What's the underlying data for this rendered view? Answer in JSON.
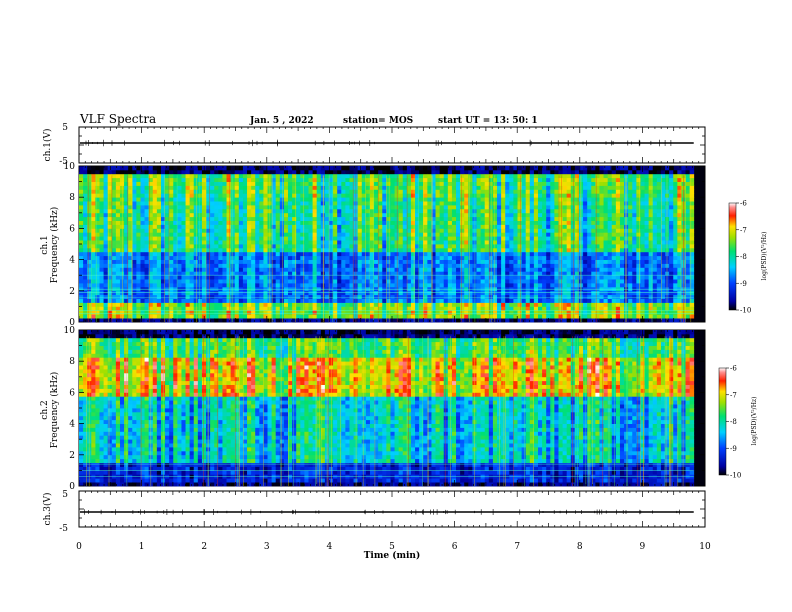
{
  "header": {
    "title": "VLF Spectra",
    "date": "Jan. 5 , 2022",
    "station": "station= MOS",
    "start_ut": "start UT = 13: 50: 1"
  },
  "colorbar": {
    "label": "log(PSD)(V²/Hz)",
    "ticks": [
      "-6",
      "-7",
      "-8",
      "-9",
      "-10"
    ],
    "range": [
      -10,
      -6
    ]
  },
  "chart_data": [
    {
      "type": "heatmap",
      "channel": "ch.1",
      "ylabel": "Frequency (kHz)",
      "xlabel": "Time (min)",
      "xlim": [
        0,
        10
      ],
      "xticks": [
        "0",
        "1",
        "2",
        "3",
        "4",
        "5",
        "6",
        "7",
        "8",
        "9",
        "10"
      ],
      "ylim": [
        0,
        10
      ],
      "yticks": [
        "0",
        "2",
        "4",
        "6",
        "8",
        "10"
      ],
      "data_end_min": 9.82,
      "bright_band_khz": [
        0.3,
        9.4
      ],
      "dark_band_khz": [
        1.2,
        4.5
      ],
      "cutoff_khz": 9.4
    },
    {
      "type": "heatmap",
      "channel": "ch.2",
      "ylabel": "Frequency (kHz)",
      "xlabel": "Time (min)",
      "xlim": [
        0,
        10
      ],
      "ylim": [
        0,
        10
      ],
      "yticks": [
        "0",
        "2",
        "4",
        "6",
        "8",
        "10"
      ],
      "data_end_min": 9.82,
      "intensity_peak_khz": [
        5.8,
        8.2
      ],
      "dark_band_khz": [
        0.2,
        1.5
      ],
      "cutoff_khz": 9.6
    },
    {
      "type": "line",
      "channel": "ch.1",
      "ylabel": "ch.1(V)",
      "ylim": [
        -5,
        5
      ],
      "yticks": [
        "-5",
        "5"
      ],
      "level": 0
    },
    {
      "type": "line",
      "channel": "ch.3",
      "ylabel": "ch.3(V)",
      "ylim": [
        -5,
        5
      ],
      "yticks": [
        "-5",
        "5"
      ],
      "level": 0
    }
  ]
}
